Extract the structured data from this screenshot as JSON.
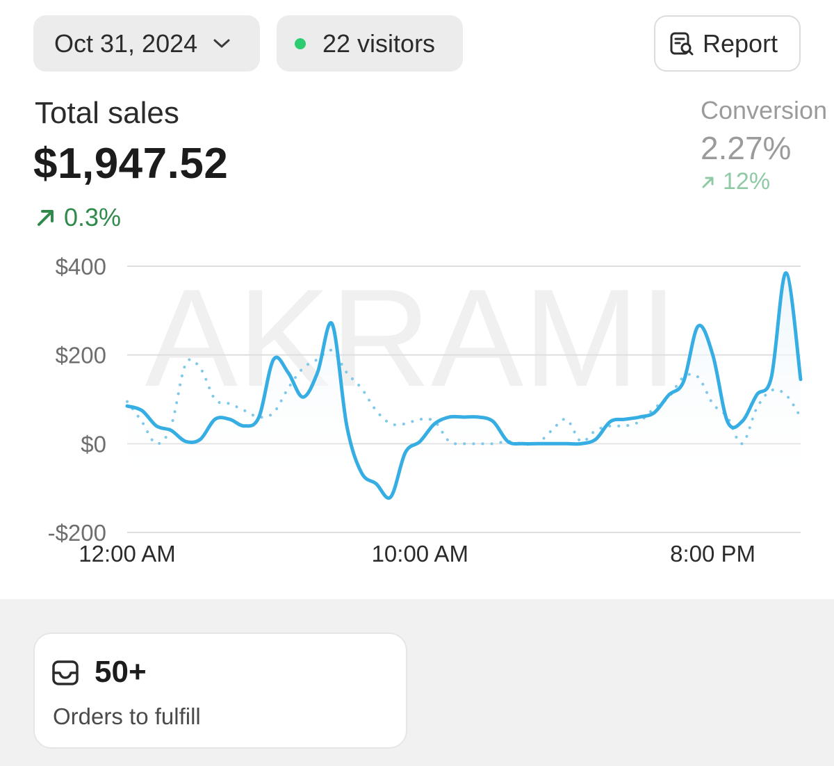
{
  "header": {
    "date_label": "Oct 31, 2024",
    "visitors_label": "22 visitors",
    "report_label": "Report"
  },
  "sales": {
    "label": "Total sales",
    "value": "$1,947.52",
    "change": "0.3%"
  },
  "conversion": {
    "label": "Conversion",
    "value": "2.27%",
    "change": "12%"
  },
  "watermark": "AKRAMI",
  "orders": {
    "count": "50+",
    "label": "Orders to fulfill"
  },
  "colors": {
    "primary_line": "#36aee3",
    "comparison_line": "#7ec8ea",
    "positive": "#2f8a4c",
    "status_dot": "#2ecc71"
  },
  "chart_data": {
    "type": "line",
    "y_ticks": [
      400,
      200,
      0,
      -200
    ],
    "y_tick_labels": [
      "$400",
      "$200",
      "$0",
      "-$200"
    ],
    "ylim": [
      -200,
      400
    ],
    "x_ticks": [
      0,
      10,
      20
    ],
    "x_tick_labels": [
      "12:00 AM",
      "10:00 AM",
      "8:00 PM"
    ],
    "xlim": [
      0,
      23
    ],
    "grid": true,
    "series": [
      {
        "style": "solid",
        "color": "#36aee3",
        "x": [
          0,
          0.5,
          1,
          1.5,
          2,
          2.5,
          3,
          3.5,
          4,
          4.5,
          5,
          5.5,
          6,
          6.5,
          7,
          7.5,
          8,
          8.5,
          9,
          9.5,
          10,
          10.5,
          11,
          11.5,
          12,
          12.5,
          13,
          13.5,
          14,
          14.5,
          15,
          15.5,
          16,
          16.5,
          17,
          17.5,
          18,
          18.5,
          19,
          19.5,
          20,
          20.5,
          21,
          21.5,
          22,
          22.5,
          23
        ],
        "y": [
          85,
          75,
          40,
          30,
          5,
          10,
          55,
          55,
          40,
          60,
          190,
          160,
          105,
          160,
          270,
          40,
          -65,
          -90,
          -120,
          -20,
          5,
          45,
          60,
          60,
          60,
          50,
          5,
          0,
          0,
          0,
          0,
          0,
          10,
          50,
          55,
          60,
          70,
          110,
          140,
          265,
          200,
          50,
          50,
          110,
          150,
          385,
          145
        ]
      },
      {
        "style": "dotted",
        "color": "#7ec8ea",
        "x": [
          0,
          0.5,
          1,
          1.5,
          2,
          2.5,
          3,
          3.5,
          4,
          4.5,
          5,
          5.5,
          6,
          6.5,
          7,
          7.5,
          8,
          8.5,
          9,
          9.5,
          10,
          10.5,
          11,
          11.5,
          12,
          12.5,
          13,
          13.5,
          14,
          14.5,
          15,
          15.5,
          16,
          16.5,
          17,
          17.5,
          18,
          18.5,
          19,
          19.5,
          20,
          20.5,
          21,
          21.5,
          22,
          22.5,
          23
        ],
        "y": [
          95,
          50,
          0,
          40,
          180,
          170,
          100,
          90,
          75,
          60,
          70,
          125,
          170,
          190,
          210,
          160,
          125,
          75,
          45,
          45,
          55,
          50,
          5,
          0,
          0,
          0,
          5,
          0,
          0,
          30,
          55,
          5,
          30,
          40,
          40,
          50,
          80,
          105,
          150,
          150,
          90,
          60,
          0,
          80,
          120,
          110,
          60
        ]
      }
    ]
  }
}
